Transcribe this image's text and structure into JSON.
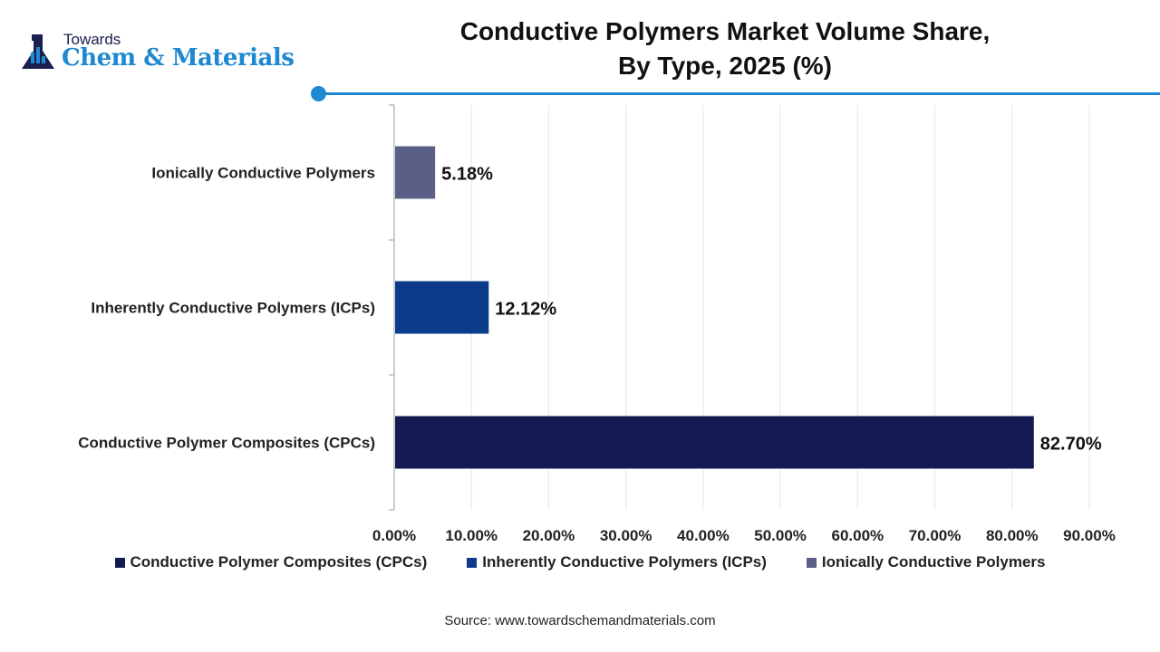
{
  "logo": {
    "top": "Towards",
    "main": "Chem & Materials"
  },
  "title_lines": [
    "Conductive Polymers Market Volume Share,",
    "By Type, 2025 (%)"
  ],
  "chart_data": {
    "type": "bar",
    "orientation": "horizontal",
    "title": "Conductive Polymers Market Volume Share, By Type, 2025 (%)",
    "categories": [
      "Ionically Conductive Polymers",
      "Inherently Conductive Polymers (ICPs)",
      "Conductive Polymer Composites (CPCs)"
    ],
    "values": [
      5.18,
      12.12,
      82.7
    ],
    "data_labels": [
      "5.18%",
      "12.12%",
      "82.70%"
    ],
    "colors": [
      "#5a5f87",
      "#0d3b8c",
      "#141a52"
    ],
    "xlim": [
      0,
      90
    ],
    "x_ticks": [
      "0.00%",
      "10.00%",
      "20.00%",
      "30.00%",
      "40.00%",
      "50.00%",
      "60.00%",
      "70.00%",
      "80.00%",
      "90.00%"
    ],
    "grid": true,
    "legend_position": "bottom",
    "legend": [
      {
        "name": "Conductive Polymer Composites (CPCs)",
        "color": "#141a52"
      },
      {
        "name": "Inherently Conductive Polymers (ICPs)",
        "color": "#0d3b8c"
      },
      {
        "name": "Ionically Conductive Polymers",
        "color": "#5a5f87"
      }
    ]
  },
  "source": "Source: www.towardschemandmaterials.com"
}
